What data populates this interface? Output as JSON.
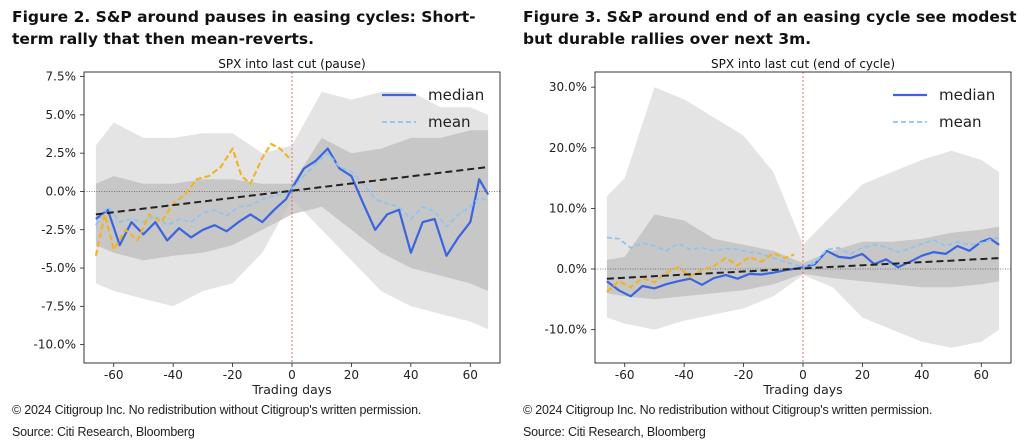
{
  "figures": [
    {
      "heading": "Figure 2. S&P around pauses in easing cycles: Short-term rally that then mean-reverts.",
      "footer_copyright": "© 2024 Citigroup Inc. No redistribution without Citigroup's written permission.",
      "footer_source": "Source: Citi Research, Bloomberg"
    },
    {
      "heading": "Figure 3. S&P around end of an easing cycle see modest but durable rallies over next 3m.",
      "footer_copyright": "© 2024 Citigroup Inc. No redistribution without Citigroup's written permission.",
      "footer_source": "Source: Citi Research, Bloomberg"
    }
  ],
  "chart_data": [
    {
      "type": "line",
      "title": "SPX into last cut (pause)",
      "xlabel": "Trading days",
      "ylabel": "",
      "xlim": [
        -70,
        70
      ],
      "ylim": [
        -11.2,
        7.8
      ],
      "xticks": [
        -60,
        -40,
        -20,
        0,
        20,
        40,
        60
      ],
      "yticks": [
        7.5,
        5.0,
        2.5,
        0.0,
        -2.5,
        -5.0,
        -7.5,
        -10.0
      ],
      "ytick_labels": [
        "7.5%",
        "5.0%",
        "2.5%",
        "0.0%",
        "-2.5%",
        "-5.0%",
        "-7.5%",
        "-10.0%"
      ],
      "legend_position": "top-right",
      "vline_x": 0,
      "hline_y": 0,
      "colors": {
        "median": "#3a64e0",
        "mean": "#8fc4f0",
        "orange": "#f0b429",
        "trend": "#222222",
        "band_outer": "#e4e4e4",
        "band_inner": "#bdbdbd"
      },
      "series": [
        {
          "name": "median",
          "x": [
            -66,
            -62,
            -58,
            -54,
            -50,
            -46,
            -42,
            -38,
            -34,
            -30,
            -26,
            -22,
            -18,
            -14,
            -10,
            -6,
            -2,
            0,
            4,
            8,
            12,
            16,
            20,
            24,
            28,
            32,
            36,
            40,
            44,
            48,
            52,
            56,
            60,
            63,
            66
          ],
          "y": [
            -1.8,
            -1.2,
            -3.5,
            -2.0,
            -2.8,
            -2.0,
            -3.2,
            -2.4,
            -3.0,
            -2.5,
            -2.2,
            -2.6,
            -2.0,
            -1.5,
            -2.0,
            -1.2,
            -0.5,
            0.2,
            1.5,
            2.0,
            2.8,
            1.5,
            1.0,
            -0.8,
            -2.5,
            -1.5,
            -1.2,
            -4.0,
            -2.0,
            -1.8,
            -4.2,
            -3.0,
            -2.0,
            0.8,
            -0.2
          ]
        },
        {
          "name": "mean",
          "x": [
            -66,
            -62,
            -58,
            -54,
            -50,
            -46,
            -42,
            -38,
            -34,
            -30,
            -26,
            -22,
            -18,
            -14,
            -10,
            -6,
            -2,
            0,
            4,
            8,
            12,
            16,
            20,
            24,
            28,
            32,
            36,
            40,
            44,
            48,
            52,
            56,
            60,
            63,
            66
          ],
          "y": [
            -2.2,
            -1.0,
            -2.0,
            -1.8,
            -2.0,
            -1.6,
            -2.2,
            -1.8,
            -2.0,
            -1.4,
            -1.2,
            -1.6,
            -1.0,
            -0.9,
            -0.5,
            -0.3,
            -0.1,
            0.2,
            1.0,
            1.8,
            2.5,
            1.6,
            1.3,
            0.5,
            -0.5,
            -0.8,
            -1.0,
            -1.8,
            -1.0,
            -1.3,
            -2.3,
            -1.5,
            -1.0,
            -0.4,
            -0.6
          ]
        },
        {
          "name": "",
          "x": [
            -66,
            -63,
            -60,
            -56,
            -52,
            -48,
            -44,
            -40,
            -36,
            -32,
            -28,
            -24,
            -20,
            -17,
            -14,
            -10,
            -7,
            -4,
            -1
          ],
          "y": [
            -4.2,
            -1.5,
            -3.8,
            -2.5,
            -3.2,
            -1.5,
            -2.0,
            -0.8,
            -0.2,
            0.8,
            1.0,
            1.6,
            2.8,
            1.0,
            0.5,
            2.2,
            3.1,
            2.8,
            2.2
          ]
        },
        {
          "name": "",
          "x": [
            -66,
            66
          ],
          "y": [
            -1.5,
            1.6
          ]
        }
      ],
      "bands": {
        "x": [
          -66,
          -60,
          -50,
          -40,
          -30,
          -20,
          -10,
          0,
          10,
          20,
          30,
          40,
          50,
          60,
          66
        ],
        "outer_lo": [
          -6.0,
          -6.5,
          -7.0,
          -7.5,
          -6.5,
          -6.0,
          -4.0,
          -0.5,
          -2.5,
          -4.5,
          -6.5,
          -7.5,
          -8.0,
          -8.5,
          -9.0
        ],
        "outer_hi": [
          3.0,
          4.5,
          3.5,
          3.5,
          3.8,
          3.8,
          2.5,
          3.0,
          6.5,
          6.0,
          6.5,
          6.5,
          5.5,
          5.5,
          5.0
        ],
        "inner_lo": [
          -3.5,
          -4.0,
          -4.5,
          -4.2,
          -4.0,
          -3.5,
          -2.5,
          -1.5,
          -1.0,
          -2.5,
          -4.0,
          -5.0,
          -5.5,
          -6.0,
          -6.5
        ],
        "inner_hi": [
          0.5,
          1.0,
          0.5,
          0.5,
          0.8,
          0.8,
          0.5,
          0.5,
          3.5,
          2.5,
          2.8,
          3.5,
          3.5,
          4.0,
          4.0
        ]
      }
    },
    {
      "type": "line",
      "title": "SPX into last cut (end of cycle)",
      "xlabel": "Trading days",
      "ylabel": "",
      "xlim": [
        -70,
        70
      ],
      "ylim": [
        -15.5,
        32.5
      ],
      "xticks": [
        -60,
        -40,
        -20,
        0,
        20,
        40,
        60
      ],
      "yticks": [
        30,
        20,
        10,
        0,
        -10
      ],
      "ytick_labels": [
        "30.0%",
        "20.0%",
        "10.0%",
        "0.0%",
        "-10.0%"
      ],
      "legend_position": "top-right",
      "vline_x": 0,
      "hline_y": 0,
      "colors": {
        "median": "#3a64e0",
        "mean": "#8fc4f0",
        "orange": "#f0b429",
        "trend": "#222222",
        "band_outer": "#e4e4e4",
        "band_inner": "#bdbdbd"
      },
      "series": [
        {
          "name": "median",
          "x": [
            -66,
            -62,
            -58,
            -54,
            -50,
            -46,
            -42,
            -38,
            -34,
            -30,
            -26,
            -22,
            -18,
            -14,
            -10,
            -6,
            -2,
            0,
            4,
            8,
            12,
            16,
            20,
            24,
            28,
            32,
            36,
            40,
            44,
            48,
            52,
            56,
            60,
            63,
            66
          ],
          "y": [
            -2.0,
            -3.5,
            -4.5,
            -2.8,
            -3.2,
            -2.5,
            -2.0,
            -1.6,
            -2.6,
            -1.5,
            -1.0,
            -1.6,
            -0.8,
            -0.9,
            -0.6,
            -0.2,
            0.1,
            0.3,
            0.8,
            3.0,
            2.0,
            1.8,
            2.5,
            0.8,
            1.6,
            0.3,
            1.2,
            2.2,
            2.8,
            2.5,
            3.8,
            3.0,
            4.5,
            5.0,
            4.0
          ]
        },
        {
          "name": "mean",
          "x": [
            -66,
            -62,
            -58,
            -54,
            -50,
            -46,
            -42,
            -38,
            -34,
            -30,
            -26,
            -22,
            -18,
            -14,
            -10,
            -6,
            -2,
            0,
            4,
            8,
            12,
            16,
            20,
            24,
            28,
            32,
            36,
            40,
            44,
            48,
            52,
            56,
            60,
            63,
            66
          ],
          "y": [
            5.2,
            5.0,
            3.5,
            4.3,
            3.8,
            3.0,
            4.2,
            3.2,
            3.5,
            3.0,
            3.4,
            3.2,
            2.8,
            2.5,
            1.8,
            1.2,
            0.6,
            0.3,
            1.0,
            3.2,
            3.5,
            2.5,
            3.5,
            4.0,
            3.6,
            2.8,
            3.4,
            4.2,
            4.8,
            3.8,
            4.5,
            4.0,
            4.3,
            4.8,
            5.2
          ]
        },
        {
          "name": "",
          "x": [
            -66,
            -62,
            -58,
            -54,
            -50,
            -46,
            -42,
            -38,
            -34,
            -30,
            -26,
            -22,
            -18,
            -14,
            -10,
            -6,
            -3
          ],
          "y": [
            -3.8,
            -2.0,
            -3.0,
            -1.5,
            -2.2,
            -0.6,
            0.3,
            -1.2,
            -0.2,
            0.5,
            1.8,
            0.6,
            2.0,
            1.2,
            2.6,
            1.8,
            2.4
          ]
        },
        {
          "name": "",
          "x": [
            -66,
            66
          ],
          "y": [
            -1.6,
            1.8
          ]
        }
      ],
      "bands": {
        "x": [
          -66,
          -60,
          -50,
          -40,
          -30,
          -20,
          -10,
          0,
          10,
          20,
          30,
          40,
          50,
          60,
          66
        ],
        "outer_lo": [
          -8.0,
          -9.0,
          -10.0,
          -8.5,
          -7.5,
          -6.5,
          -4.5,
          -1.0,
          -3.0,
          -8.0,
          -10.0,
          -12.0,
          -13.0,
          -12.0,
          -10.0
        ],
        "outer_hi": [
          12.0,
          15.0,
          30.0,
          28.0,
          25.0,
          22.0,
          16.0,
          4.0,
          9.0,
          14.0,
          16.0,
          18.0,
          19.5,
          18.0,
          16.0
        ],
        "inner_lo": [
          -4.0,
          -4.5,
          -5.0,
          -4.5,
          -4.0,
          -3.5,
          -2.5,
          -0.8,
          -1.5,
          -2.0,
          -2.5,
          -3.0,
          -3.0,
          -2.5,
          -2.0
        ],
        "inner_hi": [
          1.5,
          2.0,
          9.0,
          8.0,
          5.0,
          4.0,
          3.0,
          1.0,
          3.0,
          4.5,
          4.5,
          5.0,
          6.0,
          6.5,
          7.0
        ]
      }
    }
  ]
}
